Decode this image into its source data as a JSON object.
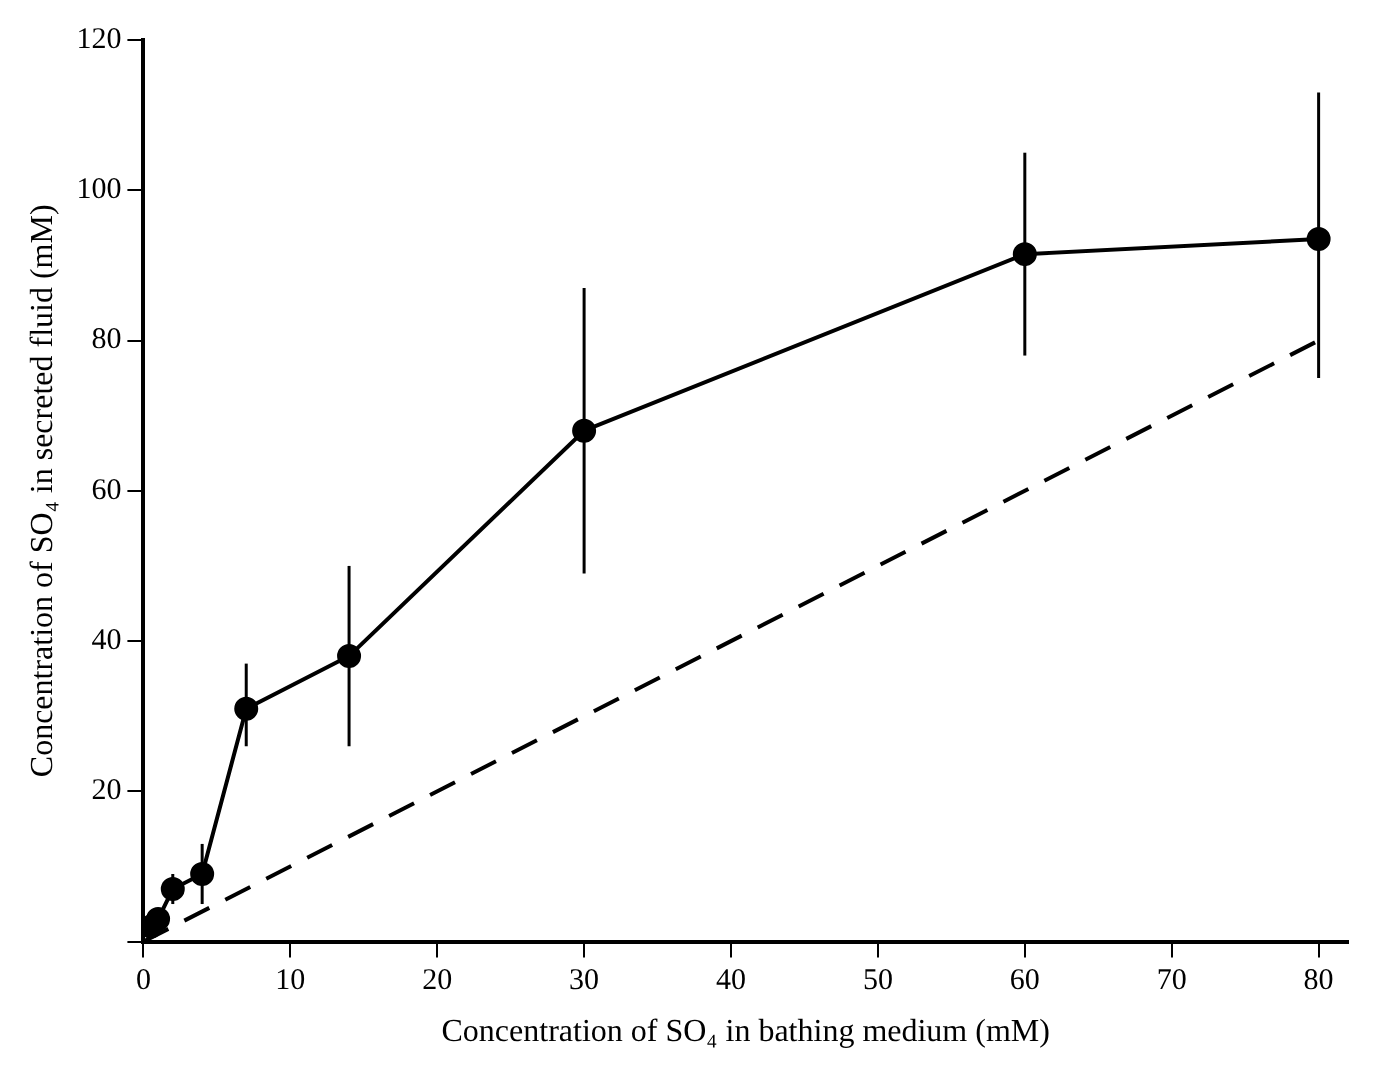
{
  "chart_data": {
    "type": "line",
    "xlabel": "Concentration of SO₄ in bathing medium (mM)",
    "ylabel": "Concentration of SO₄ in secreted fluid (mM)",
    "xlim": [
      0,
      82
    ],
    "ylim": [
      0,
      120
    ],
    "xticks": [
      0,
      10,
      20,
      30,
      40,
      50,
      60,
      70,
      80
    ],
    "yticks": [
      {
        "value": 0,
        "label": null
      },
      20,
      40,
      60,
      80,
      100,
      120
    ],
    "grid": false,
    "legend": false,
    "series": [
      {
        "color": "#000000",
        "marker": "circle",
        "line_style": "solid",
        "x": [
          0.5,
          1,
          2,
          4,
          7,
          14,
          30,
          60,
          80
        ],
        "values": [
          2,
          3,
          7,
          9,
          31,
          38,
          68,
          91.5,
          93.5
        ],
        "errors": [
          null,
          null,
          2,
          [
            5,
            13
          ],
          [
            26,
            37
          ],
          [
            26,
            50
          ],
          [
            49,
            87
          ],
          [
            78,
            105
          ],
          [
            75,
            113
          ]
        ]
      },
      {
        "color": "#000000",
        "marker": "none",
        "line_style": "dashed",
        "x": [
          0,
          80
        ],
        "values": [
          0,
          80
        ]
      }
    ]
  }
}
